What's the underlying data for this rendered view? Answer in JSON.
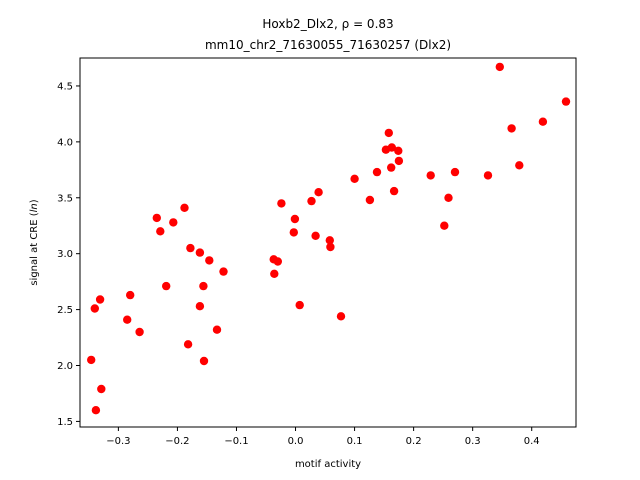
{
  "chart_data": {
    "type": "scatter",
    "title": "Hoxb2_Dlx2, ρ = 0.83",
    "subtitle": "mm10_chr2_71630055_71630257 (Dlx2)",
    "xlabel": "motif activity",
    "ylabel": "signal at CRE (ln)",
    "xlim": [
      -0.365,
      0.475
    ],
    "ylim": [
      1.45,
      4.75
    ],
    "xticks": [
      -0.3,
      -0.2,
      -0.1,
      0.0,
      0.1,
      0.2,
      0.3,
      0.4
    ],
    "xtick_labels": [
      "−0.3",
      "−0.2",
      "−0.1",
      "0.0",
      "0.1",
      "0.2",
      "0.3",
      "0.4"
    ],
    "yticks": [
      1.5,
      2.0,
      2.5,
      3.0,
      3.5,
      4.0,
      4.5
    ],
    "ytick_labels": [
      "1.5",
      "2.0",
      "2.5",
      "3.0",
      "3.5",
      "4.0",
      "4.5"
    ],
    "grid": false,
    "marker_color": "#ff0000",
    "points": [
      {
        "x": -0.346,
        "y": 2.05
      },
      {
        "x": -0.34,
        "y": 2.51
      },
      {
        "x": -0.338,
        "y": 1.6
      },
      {
        "x": -0.331,
        "y": 2.59
      },
      {
        "x": -0.329,
        "y": 1.79
      },
      {
        "x": -0.285,
        "y": 2.41
      },
      {
        "x": -0.28,
        "y": 2.63
      },
      {
        "x": -0.264,
        "y": 2.3
      },
      {
        "x": -0.235,
        "y": 3.32
      },
      {
        "x": -0.229,
        "y": 3.2
      },
      {
        "x": -0.219,
        "y": 2.71
      },
      {
        "x": -0.207,
        "y": 3.28
      },
      {
        "x": -0.188,
        "y": 3.41
      },
      {
        "x": -0.182,
        "y": 2.19
      },
      {
        "x": -0.178,
        "y": 3.05
      },
      {
        "x": -0.162,
        "y": 3.01
      },
      {
        "x": -0.162,
        "y": 2.53
      },
      {
        "x": -0.156,
        "y": 2.71
      },
      {
        "x": -0.155,
        "y": 2.04
      },
      {
        "x": -0.146,
        "y": 2.94
      },
      {
        "x": -0.133,
        "y": 2.32
      },
      {
        "x": -0.122,
        "y": 2.84
      },
      {
        "x": -0.037,
        "y": 2.95
      },
      {
        "x": -0.036,
        "y": 2.82
      },
      {
        "x": -0.03,
        "y": 2.93
      },
      {
        "x": -0.024,
        "y": 3.45
      },
      {
        "x": -0.003,
        "y": 3.19
      },
      {
        "x": -0.001,
        "y": 3.31
      },
      {
        "x": 0.007,
        "y": 2.54
      },
      {
        "x": 0.027,
        "y": 3.47
      },
      {
        "x": 0.034,
        "y": 3.16
      },
      {
        "x": 0.039,
        "y": 3.55
      },
      {
        "x": 0.058,
        "y": 3.12
      },
      {
        "x": 0.059,
        "y": 3.06
      },
      {
        "x": 0.077,
        "y": 2.44
      },
      {
        "x": 0.1,
        "y": 3.67
      },
      {
        "x": 0.126,
        "y": 3.48
      },
      {
        "x": 0.138,
        "y": 3.73
      },
      {
        "x": 0.153,
        "y": 3.93
      },
      {
        "x": 0.158,
        "y": 4.08
      },
      {
        "x": 0.162,
        "y": 3.77
      },
      {
        "x": 0.163,
        "y": 3.95
      },
      {
        "x": 0.167,
        "y": 3.56
      },
      {
        "x": 0.174,
        "y": 3.92
      },
      {
        "x": 0.175,
        "y": 3.83
      },
      {
        "x": 0.229,
        "y": 3.7
      },
      {
        "x": 0.252,
        "y": 3.25
      },
      {
        "x": 0.259,
        "y": 3.5
      },
      {
        "x": 0.27,
        "y": 3.73
      },
      {
        "x": 0.326,
        "y": 3.7
      },
      {
        "x": 0.346,
        "y": 4.67
      },
      {
        "x": 0.366,
        "y": 4.12
      },
      {
        "x": 0.379,
        "y": 3.79
      },
      {
        "x": 0.419,
        "y": 4.18
      },
      {
        "x": 0.458,
        "y": 4.36
      }
    ]
  }
}
